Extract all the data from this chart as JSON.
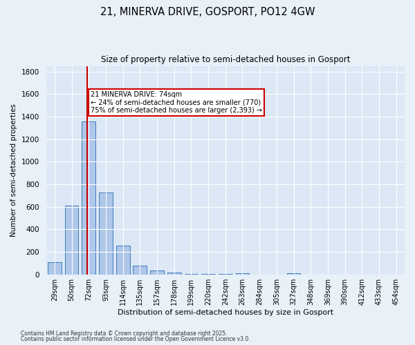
{
  "title_line1": "21, MINERVA DRIVE, GOSPORT, PO12 4GW",
  "title_line2": "Size of property relative to semi-detached houses in Gosport",
  "xlabel": "Distribution of semi-detached houses by size in Gosport",
  "ylabel": "Number of semi-detached properties",
  "categories": [
    "29sqm",
    "50sqm",
    "72sqm",
    "93sqm",
    "114sqm",
    "135sqm",
    "157sqm",
    "178sqm",
    "199sqm",
    "220sqm",
    "242sqm",
    "263sqm",
    "284sqm",
    "305sqm",
    "327sqm",
    "348sqm",
    "369sqm",
    "390sqm",
    "412sqm",
    "433sqm",
    "454sqm"
  ],
  "values": [
    110,
    610,
    1360,
    725,
    255,
    80,
    35,
    15,
    5,
    5,
    5,
    10,
    0,
    0,
    10,
    0,
    0,
    0,
    0,
    0,
    0
  ],
  "bar_color": "#aec6e8",
  "bar_edge_color": "#3a7abf",
  "red_line_index": 2,
  "red_line_color": "#cc0000",
  "annotation_text": "21 MINERVA DRIVE: 74sqm\n← 24% of semi-detached houses are smaller (770)\n75% of semi-detached houses are larger (2,393) →",
  "annotation_box_color": "#ffffff",
  "annotation_box_edge": "#cc0000",
  "ylim": [
    0,
    1850
  ],
  "background_color": "#e8f0f8",
  "plot_bg_color": "#dce8f5",
  "grid_color": "#ffffff",
  "footnote_line1": "Contains HM Land Registry data © Crown copyright and database right 2025.",
  "footnote_line2": "Contains public sector information licensed under the Open Government Licence v3.0."
}
